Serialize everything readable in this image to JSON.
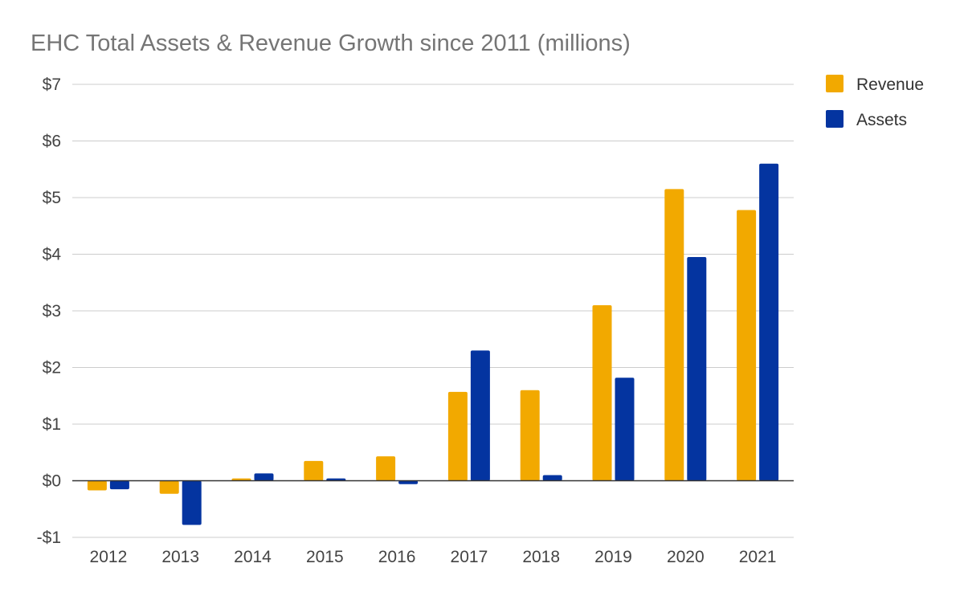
{
  "chart_data": {
    "type": "bar",
    "title": "EHC Total Assets & Revenue Growth since 2011 (millions)",
    "xlabel": "",
    "ylabel": "",
    "categories": [
      "2012",
      "2013",
      "2014",
      "2015",
      "2016",
      "2017",
      "2018",
      "2019",
      "2020",
      "2021"
    ],
    "series": [
      {
        "name": "Revenue",
        "color": "#F2A900",
        "values": [
          -0.17,
          -0.23,
          0.04,
          0.35,
          0.43,
          1.57,
          1.6,
          3.1,
          5.15,
          4.78
        ]
      },
      {
        "name": "Assets",
        "color": "#0434A0",
        "values": [
          -0.15,
          -0.78,
          0.13,
          0.04,
          -0.06,
          2.3,
          0.1,
          1.82,
          3.95,
          5.6
        ]
      }
    ],
    "ylim": [
      -1,
      7
    ],
    "yticks": [
      -1,
      0,
      1,
      2,
      3,
      4,
      5,
      6,
      7
    ],
    "ytick_labels": [
      "-$1",
      "$0",
      "$1",
      "$2",
      "$3",
      "$4",
      "$5",
      "$6",
      "$7"
    ],
    "grid": true,
    "legend": "top-right"
  }
}
